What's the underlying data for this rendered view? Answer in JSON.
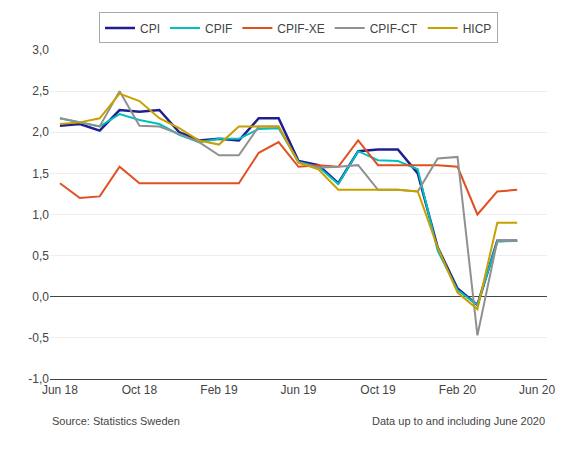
{
  "chart_data": {
    "type": "line",
    "categories": [
      "Jun 18",
      null,
      null,
      null,
      "Oct 18",
      null,
      null,
      null,
      "Feb 19",
      null,
      null,
      null,
      "Jun 19",
      null,
      null,
      null,
      "Oct 19",
      null,
      null,
      null,
      "Feb 20",
      null,
      null,
      null,
      "Jun 20"
    ],
    "series": [
      {
        "name": "CPI",
        "color": "#1f1f8f",
        "values": [
          2.08,
          2.1,
          2.02,
          2.27,
          2.25,
          2.27,
          2.0,
          1.9,
          1.92,
          1.9,
          2.17,
          2.17,
          1.65,
          1.6,
          1.38,
          1.77,
          1.79,
          1.79,
          1.5,
          0.6,
          0.1,
          -0.1,
          0.68,
          0.68,
          null
        ]
      },
      {
        "name": "CPIF",
        "color": "#00c0c0",
        "values": [
          2.17,
          2.12,
          2.07,
          2.22,
          2.15,
          2.1,
          1.97,
          1.88,
          1.92,
          1.92,
          2.04,
          2.05,
          1.64,
          1.58,
          1.37,
          1.77,
          1.66,
          1.65,
          1.55,
          0.56,
          0.08,
          -0.1,
          0.67,
          0.68,
          null
        ]
      },
      {
        "name": "CPIF-XE",
        "color": "#e05020",
        "values": [
          1.38,
          1.2,
          1.22,
          1.58,
          1.38,
          1.38,
          1.38,
          1.38,
          1.38,
          1.38,
          1.75,
          1.88,
          1.58,
          1.6,
          1.58,
          1.9,
          1.6,
          1.6,
          1.6,
          1.6,
          1.58,
          1.0,
          1.28,
          1.3,
          null
        ]
      },
      {
        "name": "CPIF-CT",
        "color": "#909090",
        "values": [
          2.17,
          2.12,
          2.07,
          2.5,
          2.08,
          2.07,
          1.98,
          1.88,
          1.72,
          1.72,
          2.07,
          2.07,
          1.63,
          1.57,
          1.58,
          1.6,
          1.3,
          1.3,
          1.28,
          1.68,
          1.7,
          -0.47,
          0.68,
          0.68,
          null
        ]
      },
      {
        "name": "HICP",
        "color": "#c8a000",
        "values": [
          2.1,
          2.12,
          2.17,
          2.47,
          2.38,
          2.17,
          2.05,
          1.9,
          1.85,
          2.07,
          2.07,
          2.07,
          1.63,
          1.55,
          1.3,
          1.3,
          1.3,
          1.3,
          1.28,
          0.6,
          0.05,
          -0.15,
          0.9,
          0.9,
          null
        ]
      }
    ],
    "ylim": [
      -1.0,
      3.0
    ],
    "yticks": [
      {
        "value": -1.0,
        "label": "-1,0"
      },
      {
        "value": -0.5,
        "label": "-0,5"
      },
      {
        "value": 0.0,
        "label": "0,0"
      },
      {
        "value": 0.5,
        "label": "0,5"
      },
      {
        "value": 1.0,
        "label": "1,0"
      },
      {
        "value": 1.5,
        "label": "1,5"
      },
      {
        "value": 2.0,
        "label": "2,0"
      },
      {
        "value": 2.5,
        "label": "2,5"
      },
      {
        "value": 3.0,
        "label": "3,0"
      }
    ],
    "grid": true,
    "legend": "top",
    "annotations": [
      "Source: Statistics Sweden",
      "Data up to and including June 2020"
    ]
  }
}
